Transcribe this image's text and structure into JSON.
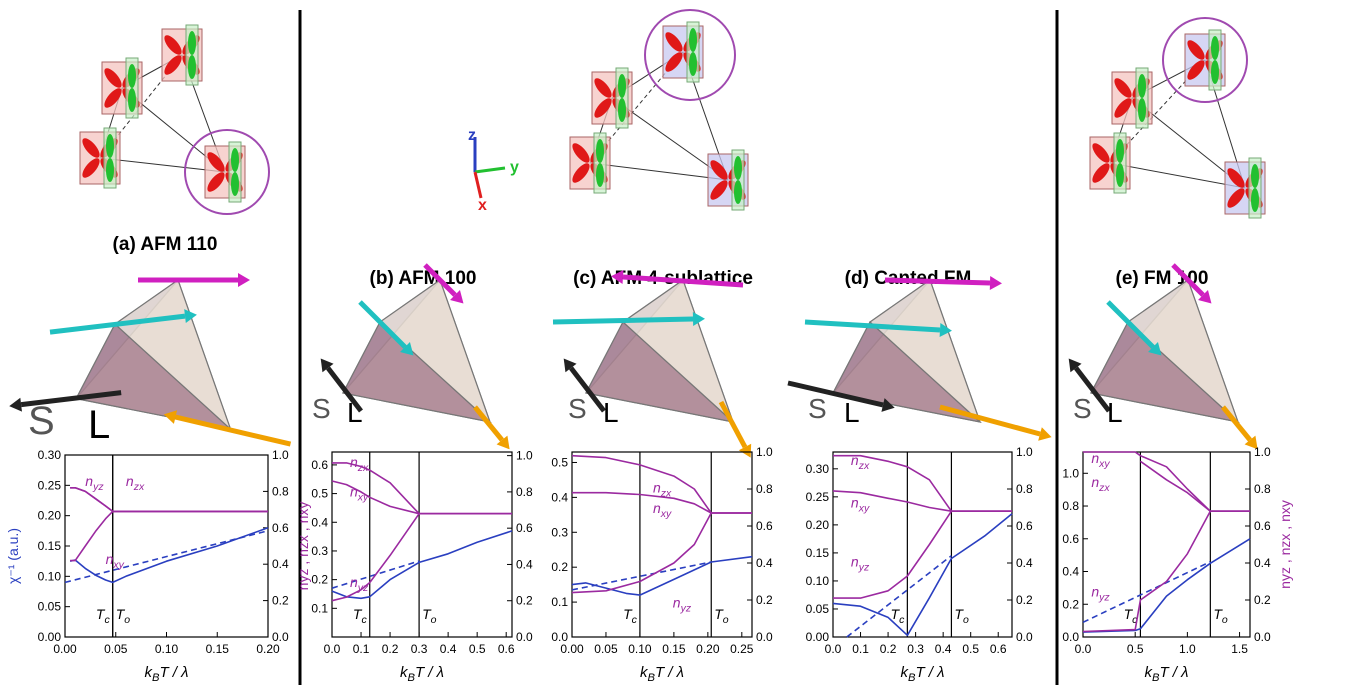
{
  "axes_triad": [
    "z",
    "y",
    "x"
  ],
  "chart_data": [
    {
      "type": "line",
      "title": "(a) AFM 110",
      "annotations": [
        "S",
        "L"
      ],
      "xlabel": "kBT / λ",
      "ylabel": "χ⁻¹ (a.u.)",
      "y2label": "nyz , nzx , nxy",
      "xlim": [
        0,
        0.2
      ],
      "xticks": [
        {
          "value": 0,
          "label": "0.00"
        },
        {
          "value": 0.05,
          "label": "0.05"
        },
        {
          "value": 0.1,
          "label": "0.10"
        },
        {
          "value": 0.15,
          "label": "0.15"
        },
        {
          "value": 0.2,
          "label": "0.20"
        }
      ],
      "ylim": [
        0,
        0.3
      ],
      "yticks": [
        {
          "value": 0,
          "label": "0.00"
        },
        {
          "value": 0.05,
          "label": "0.05"
        },
        {
          "value": 0.1,
          "label": "0.10"
        },
        {
          "value": 0.15,
          "label": "0.15"
        },
        {
          "value": 0.2,
          "label": "0.20"
        },
        {
          "value": 0.25,
          "label": "0.25"
        },
        {
          "value": 0.3,
          "label": "0.30"
        }
      ],
      "y2lim": [
        0,
        1
      ],
      "y2ticks": [
        {
          "value": 0,
          "label": "0.0"
        },
        0.2,
        0.4,
        0.6,
        0.8,
        {
          "value": 1,
          "label": "1.0"
        }
      ],
      "markers": [
        {
          "label": "Tc",
          "x": 0.047
        },
        {
          "label": "To",
          "x": 0.047
        }
      ],
      "series": [
        {
          "color": "#2a3fc0",
          "style": "solid",
          "x": [
            0.005,
            0.01,
            0.02,
            0.03,
            0.04,
            0.047,
            0.06,
            0.1,
            0.15,
            0.2
          ],
          "values": [
            0.125,
            0.127,
            0.113,
            0.102,
            0.094,
            0.09,
            0.1,
            0.125,
            0.15,
            0.18
          ]
        },
        {
          "color": "#2a3fc0",
          "style": "dashed",
          "x": [
            0,
            0.2
          ],
          "values": [
            0.09,
            0.175
          ]
        },
        {
          "name": "nyz",
          "axis": "y2",
          "color": "#9b2aa0",
          "x": [
            0.005,
            0.01,
            0.02,
            0.03,
            0.04,
            0.047,
            0.2
          ],
          "values": [
            0.82,
            0.82,
            0.8,
            0.76,
            0.72,
            0.69,
            0.69
          ]
        },
        {
          "name": "nzx",
          "axis": "y2",
          "color": "#9b2aa0",
          "x": [
            0.005,
            0.01,
            0.02,
            0.03,
            0.04,
            0.047,
            0.2
          ],
          "values": [
            0.82,
            0.82,
            0.8,
            0.76,
            0.72,
            0.69,
            0.69
          ]
        },
        {
          "name": "nxy",
          "axis": "y2",
          "color": "#9b2aa0",
          "x": [
            0.005,
            0.01,
            0.02,
            0.03,
            0.04,
            0.047,
            0.2
          ],
          "values": [
            0.42,
            0.42,
            0.5,
            0.58,
            0.65,
            0.69,
            0.69
          ]
        }
      ]
    },
    {
      "type": "line",
      "title": "(b) AFM 100",
      "annotations": [
        "S",
        "L"
      ],
      "xlabel": "kBT / λ",
      "xlim": [
        0,
        0.62
      ],
      "xticks": [
        {
          "value": 0,
          "label": "0.0"
        },
        0.1,
        0.2,
        0.3,
        0.4,
        0.5,
        0.6
      ],
      "ylim": [
        0,
        0.645
      ],
      "yticks": [
        0.1,
        0.2,
        0.3,
        0.4,
        0.5,
        0.6
      ],
      "y2lim": [
        0,
        1.02
      ],
      "y2ticks": [
        {
          "value": 0,
          "label": "0.0"
        },
        0.2,
        0.4,
        0.6,
        0.8,
        {
          "value": 1,
          "label": "1.0"
        }
      ],
      "markers": [
        {
          "label": "Tc",
          "x": 0.13
        },
        {
          "label": "To",
          "x": 0.3
        }
      ],
      "series": [
        {
          "color": "#2a3fc0",
          "style": "solid",
          "x": [
            0,
            0.05,
            0.1,
            0.13,
            0.2,
            0.3,
            0.4,
            0.5,
            0.62
          ],
          "values": [
            0.16,
            0.14,
            0.135,
            0.14,
            0.2,
            0.26,
            0.29,
            0.33,
            0.37
          ]
        },
        {
          "color": "#2a3fc0",
          "style": "dashed",
          "x": [
            0,
            0.3
          ],
          "values": [
            0.17,
            0.265
          ]
        },
        {
          "name": "nzx",
          "axis": "y2",
          "color": "#9b2aa0",
          "x": [
            0,
            0.05,
            0.1,
            0.13,
            0.2,
            0.3,
            0.62
          ],
          "values": [
            0.96,
            0.96,
            0.94,
            0.92,
            0.85,
            0.68,
            0.68
          ]
        },
        {
          "name": "nxy",
          "axis": "y2",
          "color": "#9b2aa0",
          "x": [
            0,
            0.05,
            0.1,
            0.13,
            0.2,
            0.3,
            0.62
          ],
          "values": [
            0.86,
            0.84,
            0.8,
            0.77,
            0.72,
            0.68,
            0.68
          ]
        },
        {
          "name": "nyz",
          "axis": "y2",
          "color": "#9b2aa0",
          "x": [
            0,
            0.05,
            0.1,
            0.13,
            0.2,
            0.3,
            0.62
          ],
          "values": [
            0.2,
            0.22,
            0.26,
            0.3,
            0.45,
            0.68,
            0.68
          ]
        }
      ]
    },
    {
      "type": "line",
      "title": "(c) AFM 4-sublattice",
      "annotations": [
        "S",
        "L"
      ],
      "xlabel": "kBT / λ",
      "xlim": [
        0,
        0.265
      ],
      "xticks": [
        {
          "value": 0,
          "label": "0.00"
        },
        {
          "value": 0.05,
          "label": "0.05"
        },
        {
          "value": 0.1,
          "label": "0.10"
        },
        {
          "value": 0.15,
          "label": "0.15"
        },
        {
          "value": 0.2,
          "label": "0.20"
        },
        {
          "value": 0.25,
          "label": "0.25"
        }
      ],
      "ylim": [
        0,
        0.53
      ],
      "yticks": [
        {
          "value": 0,
          "label": "0.0"
        },
        0.1,
        0.2,
        0.3,
        0.4,
        0.5
      ],
      "y2lim": [
        0,
        1
      ],
      "y2ticks": [
        {
          "value": 0,
          "label": "0.0"
        },
        0.2,
        0.4,
        0.6,
        0.8,
        {
          "value": 1,
          "label": "1.0"
        }
      ],
      "markers": [
        {
          "label": "Tc",
          "x": 0.1
        },
        {
          "label": "To",
          "x": 0.205
        }
      ],
      "series": [
        {
          "color": "#2a3fc0",
          "style": "solid",
          "x": [
            0,
            0.02,
            0.05,
            0.08,
            0.1,
            0.15,
            0.205,
            0.265
          ],
          "values": [
            0.15,
            0.155,
            0.14,
            0.125,
            0.12,
            0.165,
            0.215,
            0.23
          ]
        },
        {
          "color": "#2a3fc0",
          "style": "dashed",
          "x": [
            0,
            0.205
          ],
          "values": [
            0.135,
            0.215
          ]
        },
        {
          "name": "nzx",
          "axis": "y2",
          "color": "#9b2aa0",
          "x": [
            0,
            0.05,
            0.1,
            0.15,
            0.18,
            0.205,
            0.265
          ],
          "values": [
            0.98,
            0.97,
            0.93,
            0.87,
            0.8,
            0.67,
            0.67
          ]
        },
        {
          "name": "nxy",
          "axis": "y2",
          "color": "#9b2aa0",
          "x": [
            0,
            0.05,
            0.1,
            0.15,
            0.18,
            0.205,
            0.265
          ],
          "values": [
            0.78,
            0.78,
            0.77,
            0.75,
            0.72,
            0.67,
            0.67
          ]
        },
        {
          "name": "nyz",
          "axis": "y2",
          "color": "#9b2aa0",
          "x": [
            0,
            0.05,
            0.1,
            0.15,
            0.18,
            0.205,
            0.265
          ],
          "values": [
            0.24,
            0.25,
            0.3,
            0.4,
            0.5,
            0.67,
            0.67
          ]
        }
      ]
    },
    {
      "type": "line",
      "title": "(d) Canted FM",
      "annotations": [
        "S",
        "L"
      ],
      "xlabel": "kBT / λ",
      "xlim": [
        0,
        0.65
      ],
      "xticks": [
        {
          "value": 0,
          "label": "0.0"
        },
        0.1,
        0.2,
        0.3,
        0.4,
        0.5,
        0.6
      ],
      "ylim": [
        0,
        0.33
      ],
      "yticks": [
        {
          "value": 0,
          "label": "0.00"
        },
        {
          "value": 0.05,
          "label": "0.05"
        },
        {
          "value": 0.1,
          "label": "0.10"
        },
        {
          "value": 0.15,
          "label": "0.15"
        },
        {
          "value": 0.2,
          "label": "0.20"
        },
        {
          "value": 0.25,
          "label": "0.25"
        },
        {
          "value": 0.3,
          "label": "0.30"
        }
      ],
      "y2lim": [
        0,
        1
      ],
      "y2ticks": [
        {
          "value": 0,
          "label": "0.0"
        },
        0.2,
        0.4,
        0.6,
        0.8,
        {
          "value": 1,
          "label": "1.0"
        }
      ],
      "markers": [
        {
          "label": "Tc",
          "x": 0.27
        },
        {
          "label": "To",
          "x": 0.43
        }
      ],
      "series": [
        {
          "color": "#2a3fc0",
          "style": "solid",
          "x": [
            0,
            0.1,
            0.2,
            0.27,
            0.35,
            0.43,
            0.55,
            0.65
          ],
          "values": [
            0.06,
            0.055,
            0.035,
            0.003,
            0.07,
            0.14,
            0.18,
            0.22
          ]
        },
        {
          "color": "#2a3fc0",
          "style": "dashed",
          "x": [
            0.05,
            0.43
          ],
          "values": [
            0,
            0.145
          ]
        },
        {
          "name": "nzx",
          "axis": "y2",
          "color": "#9b2aa0",
          "x": [
            0,
            0.1,
            0.2,
            0.27,
            0.35,
            0.43,
            0.65
          ],
          "values": [
            0.98,
            0.98,
            0.95,
            0.92,
            0.85,
            0.68,
            0.68
          ]
        },
        {
          "name": "nxy",
          "axis": "y2",
          "color": "#9b2aa0",
          "x": [
            0,
            0.1,
            0.2,
            0.27,
            0.35,
            0.43,
            0.65
          ],
          "values": [
            0.79,
            0.78,
            0.75,
            0.73,
            0.7,
            0.68,
            0.68
          ]
        },
        {
          "name": "nyz",
          "axis": "y2",
          "color": "#9b2aa0",
          "x": [
            0,
            0.1,
            0.2,
            0.27,
            0.35,
            0.43,
            0.65
          ],
          "values": [
            0.21,
            0.21,
            0.25,
            0.33,
            0.5,
            0.68,
            0.68
          ]
        }
      ]
    },
    {
      "type": "line",
      "title": "(e) FM 100",
      "annotations": [
        "S",
        "L"
      ],
      "xlabel": "kBT / λ",
      "y2label": "nyz , nzx , nxy",
      "xlim": [
        0,
        1.6
      ],
      "xticks": [
        {
          "value": 0,
          "label": "0.0"
        },
        0.5,
        {
          "value": 1,
          "label": "1.0"
        },
        1.5
      ],
      "ylim": [
        0,
        1.13
      ],
      "yticks": [
        {
          "value": 0,
          "label": "0.0"
        },
        0.2,
        0.4,
        0.6,
        0.8,
        {
          "value": 1,
          "label": "1.0"
        }
      ],
      "y2lim": [
        0,
        1
      ],
      "y2ticks": [
        {
          "value": 0,
          "label": "0.0"
        },
        0.2,
        0.4,
        0.6,
        0.8,
        {
          "value": 1,
          "label": "1.0"
        }
      ],
      "markers": [
        {
          "label": "Tc",
          "x": 0.55
        },
        {
          "label": "To",
          "x": 1.22
        }
      ],
      "series": [
        {
          "color": "#2a3fc0",
          "style": "solid",
          "x": [
            0,
            0.5,
            0.55,
            0.8,
            1,
            1.22,
            1.6
          ],
          "values": [
            0.03,
            0.04,
            0.05,
            0.25,
            0.35,
            0.45,
            0.6
          ]
        },
        {
          "color": "#2a3fc0",
          "style": "dashed",
          "x": [
            0,
            1.22
          ],
          "values": [
            0.09,
            0.46
          ]
        },
        {
          "name": "nxy",
          "axis": "y2",
          "color": "#9b2aa0",
          "x": [
            0,
            0.5,
            0.55,
            0.8,
            1,
            1.22,
            1.6
          ],
          "values": [
            1,
            1,
            0.98,
            0.92,
            0.8,
            0.68,
            0.68
          ]
        },
        {
          "name": "nzx",
          "axis": "y2",
          "color": "#9b2aa0",
          "x": [
            0.55,
            0.8,
            1,
            1.22,
            1.6
          ],
          "values": [
            0.95,
            0.85,
            0.78,
            0.68,
            0.68
          ]
        },
        {
          "name": "nyz",
          "axis": "y2",
          "color": "#9b2aa0",
          "x": [
            0,
            0.5,
            0.55,
            0.8,
            1,
            1.22,
            1.6
          ],
          "values": [
            0.03,
            0.04,
            0.2,
            0.3,
            0.45,
            0.68,
            0.68
          ]
        }
      ]
    }
  ]
}
